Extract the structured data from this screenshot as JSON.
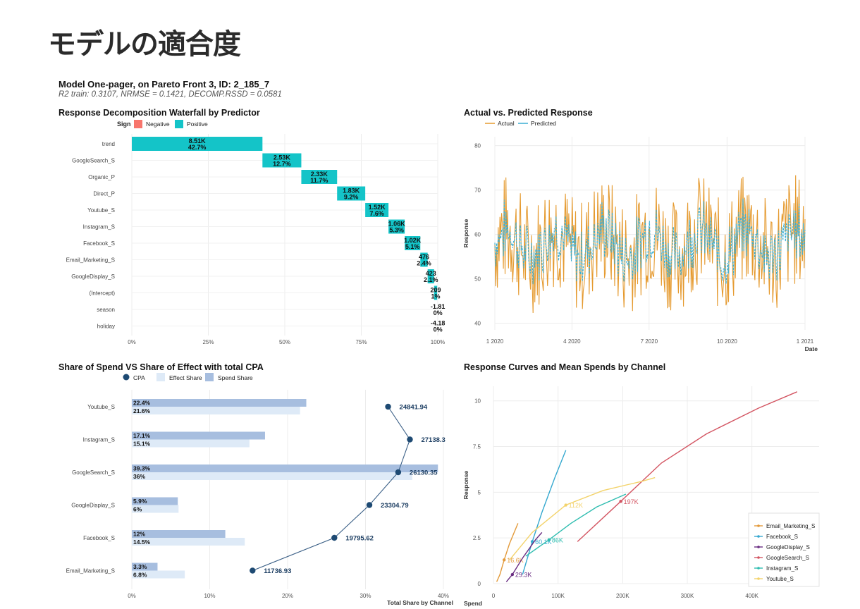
{
  "page_title": "モデルの適合度",
  "onepager": {
    "title": "Model One-pager, on Pareto Front 3, ID: 2_185_7",
    "subtitle": "R2 train: 0.3107, NRMSE = 0.1421, DECOMP.RSSD = 0.0581"
  },
  "chart_data": [
    {
      "type": "bar",
      "id": "waterfall",
      "title": "Response Decomposition Waterfall by Predictor",
      "legend": {
        "title": "Sign",
        "entries": [
          "Negative",
          "Positive"
        ],
        "placement": "top-left"
      },
      "colors": {
        "Positive": "#14c4c8",
        "Negative": "#f8766d"
      },
      "categories": [
        "trend",
        "GoogleSearch_S",
        "Organic_P",
        "Direct_P",
        "Youtube_S",
        "Instagram_S",
        "Facebook_S",
        "Email_Marketing_S",
        "GoogleDisplay_S",
        "(Intercept)",
        "season",
        "holiday"
      ],
      "values": [
        "8.51K",
        "2.53K",
        "2.33K",
        "1.83K",
        "1.52K",
        "1.06K",
        "1.02K",
        "476",
        "423",
        "209",
        "-1.81",
        "-4.18"
      ],
      "shares": [
        "42.7%",
        "12.7%",
        "11.7%",
        "9.2%",
        "7.6%",
        "5.3%",
        "5.1%",
        "2.4%",
        "2.1%",
        "1%",
        "0%",
        "0%"
      ],
      "share_values": [
        42.7,
        12.7,
        11.7,
        9.2,
        7.6,
        5.3,
        5.1,
        2.4,
        2.1,
        1.0,
        0.0,
        0.0
      ],
      "x_ticks": [
        "0%",
        "25%",
        "50%",
        "75%",
        "100%"
      ],
      "xlim": [
        0,
        100
      ]
    },
    {
      "type": "line",
      "id": "actual_vs_predicted",
      "title": "Actual vs. Predicted Response",
      "legend": {
        "entries": [
          "Actual",
          "Predicted"
        ],
        "placement": "top-left"
      },
      "colors": {
        "Actual": "#e59a2f",
        "Predicted": "#3aaed3"
      },
      "xlabel": "Date",
      "ylabel": "Response",
      "x_ticks": [
        "1 2020",
        "4 2020",
        "7 2020",
        "10 2020",
        "1 2021"
      ],
      "y_ticks": [
        "40",
        "50",
        "60",
        "70",
        "80"
      ],
      "xlim": [
        "2020-01-01",
        "2021-01-01"
      ],
      "ylim": [
        38.5,
        82
      ]
    },
    {
      "type": "bar",
      "id": "share_spend_effect",
      "title": "Share of Spend VS Share of Effect with total CPA",
      "legend": {
        "entries": [
          "CPA",
          "Effect Share",
          "Spend Share"
        ],
        "placement": "top-left"
      },
      "colors": {
        "CPA": "#1e4a73",
        "Effect Share": "#deeaf7",
        "Spend Share": "#a7bedf"
      },
      "xlabel": "Total Share by Channel",
      "x_ticks": [
        "0%",
        "10%",
        "20%",
        "30%",
        "40%"
      ],
      "xlim": [
        0,
        40
      ],
      "categories": [
        "Youtube_S",
        "Instagram_S",
        "GoogleSearch_S",
        "GoogleDisplay_S",
        "Facebook_S",
        "Email_Marketing_S"
      ],
      "spend_share": [
        22.4,
        17.1,
        39.3,
        5.9,
        12.0,
        3.3
      ],
      "spend_share_labels": [
        "22.4%",
        "17.1%",
        "39.3%",
        "5.9%",
        "12%",
        "3.3%"
      ],
      "effect_share": [
        21.6,
        15.1,
        36.0,
        6.0,
        14.5,
        6.8
      ],
      "effect_share_labels": [
        "21.6%",
        "15.1%",
        "36%",
        "6%",
        "14.5%",
        "6.8%"
      ],
      "cpa_labels": [
        "24841.94",
        "27138.3",
        "26130.35",
        "23304.79",
        "19795.62",
        "11736.93"
      ],
      "cpa_pos": [
        32.9,
        35.7,
        34.2,
        30.5,
        26.0,
        15.5
      ]
    },
    {
      "type": "line",
      "id": "response_curves",
      "title": "Response Curves and Mean Spends by Channel",
      "xlabel": "Spend",
      "ylabel": "Response",
      "x_ticks": [
        "0",
        "100K",
        "200K",
        "300K",
        "400K"
      ],
      "y_ticks": [
        "0",
        "2.5",
        "5",
        "7.5",
        "10"
      ],
      "xlim": [
        0,
        480000
      ],
      "ylim": [
        0,
        10.8
      ],
      "legend": {
        "placement": "bottom-right",
        "entries": [
          "Email_Marketing_S",
          "Facebook_S",
          "GoogleDisplay_S",
          "GoogleSearch_S",
          "Instagram_S",
          "Youtube_S"
        ]
      },
      "series": [
        {
          "name": "Email_Marketing_S",
          "color": "#e39a3a",
          "x": [
            5000,
            10000,
            16600,
            25000,
            38000
          ],
          "y": [
            0.1,
            0.5,
            1.3,
            2.2,
            3.3
          ],
          "mean": {
            "x": 16600,
            "y": 1.3,
            "label": "16.6K"
          }
        },
        {
          "name": "Facebook_S",
          "color": "#35a8cf",
          "x": [
            45000,
            60100,
            75000,
            95000,
            112000
          ],
          "y": [
            0.5,
            2.3,
            3.9,
            5.8,
            7.3
          ],
          "mean": {
            "x": 60100,
            "y": 2.3,
            "label": "60.1K"
          }
        },
        {
          "name": "GoogleDisplay_S",
          "color": "#6a2d82",
          "x": [
            20000,
            29300,
            45000,
            65000,
            75000
          ],
          "y": [
            0.1,
            0.5,
            1.4,
            2.4,
            2.8
          ],
          "mean": {
            "x": 29300,
            "y": 0.5,
            "label": "29.3K"
          }
        },
        {
          "name": "GoogleSearch_S",
          "color": "#d35562",
          "x": [
            130000,
            197000,
            260000,
            330000,
            410000,
            470000
          ],
          "y": [
            2.3,
            4.5,
            6.6,
            8.2,
            9.6,
            10.5
          ],
          "mean": {
            "x": 197000,
            "y": 4.5,
            "label": "197K"
          }
        },
        {
          "name": "Instagram_S",
          "color": "#2fbdb0",
          "x": [
            50000,
            86000,
            120000,
            160000,
            205000
          ],
          "y": [
            1.5,
            2.4,
            3.3,
            4.2,
            4.9
          ],
          "mean": {
            "x": 86000,
            "y": 2.4,
            "label": "86K"
          }
        },
        {
          "name": "Youtube_S",
          "color": "#f3d36b",
          "x": [
            25000,
            60000,
            112000,
            170000,
            230000,
            250000
          ],
          "y": [
            1.3,
            2.8,
            4.3,
            5.1,
            5.6,
            5.8
          ],
          "mean": {
            "x": 112000,
            "y": 4.3,
            "label": "112K"
          }
        }
      ]
    }
  ]
}
